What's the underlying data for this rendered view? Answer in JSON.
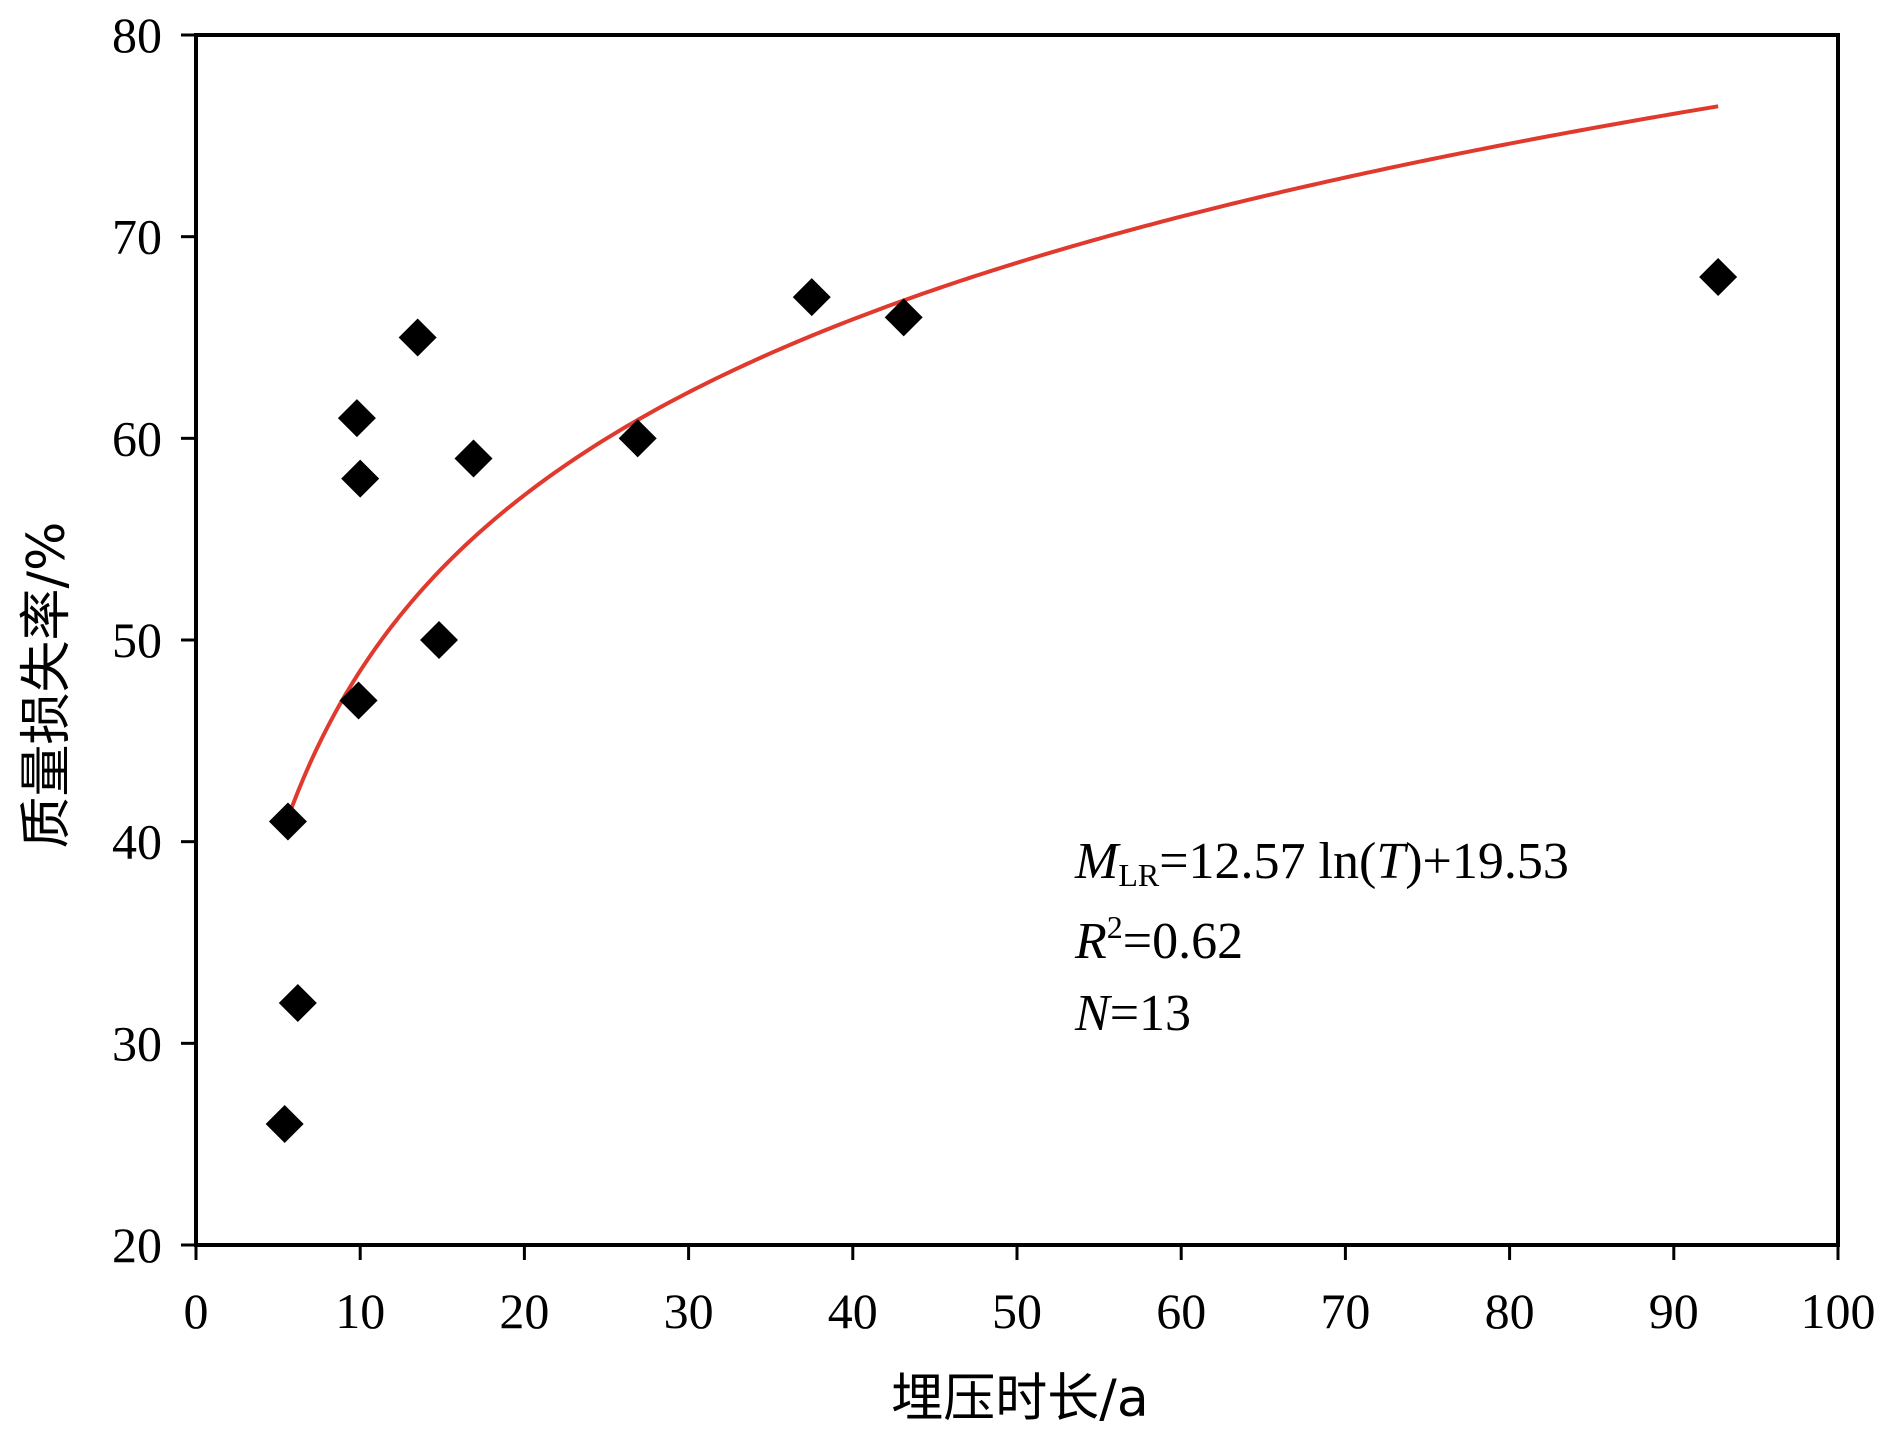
{
  "chart_data": {
    "type": "scatter",
    "xlabel": "埋压时长/a",
    "ylabel": "质量损失率/%",
    "xlim": [
      0,
      100
    ],
    "ylim": [
      20,
      80
    ],
    "xticks": [
      0,
      10,
      20,
      30,
      40,
      50,
      60,
      70,
      80,
      90,
      100
    ],
    "yticks": [
      20,
      30,
      40,
      50,
      60,
      70,
      80
    ],
    "grid": false,
    "marker": "diamond",
    "marker_color": "#000000",
    "fit_color": "#e03a2f",
    "points": [
      {
        "x": 5.4,
        "y": 26
      },
      {
        "x": 5.6,
        "y": 41
      },
      {
        "x": 6.2,
        "y": 32
      },
      {
        "x": 9.8,
        "y": 61
      },
      {
        "x": 9.9,
        "y": 47
      },
      {
        "x": 10.0,
        "y": 58
      },
      {
        "x": 13.5,
        "y": 65
      },
      {
        "x": 14.8,
        "y": 50
      },
      {
        "x": 16.9,
        "y": 59
      },
      {
        "x": 26.9,
        "y": 60
      },
      {
        "x": 37.5,
        "y": 67
      },
      {
        "x": 43.1,
        "y": 66
      },
      {
        "x": 92.7,
        "y": 68
      }
    ],
    "fit": {
      "a": 12.57,
      "b": 19.53,
      "x_start": 5.5,
      "x_end": 92.7
    },
    "annotation": {
      "line1_M": "M",
      "line1_sub": "LR",
      "line1_rest": "=12.57 ln(",
      "line1_T": "T",
      "line1_end": ")+19.53",
      "line2_R": "R",
      "line2_sup": "2",
      "line2_rest": "=0.62",
      "line3_N": "N",
      "line3_rest": "=13"
    }
  }
}
